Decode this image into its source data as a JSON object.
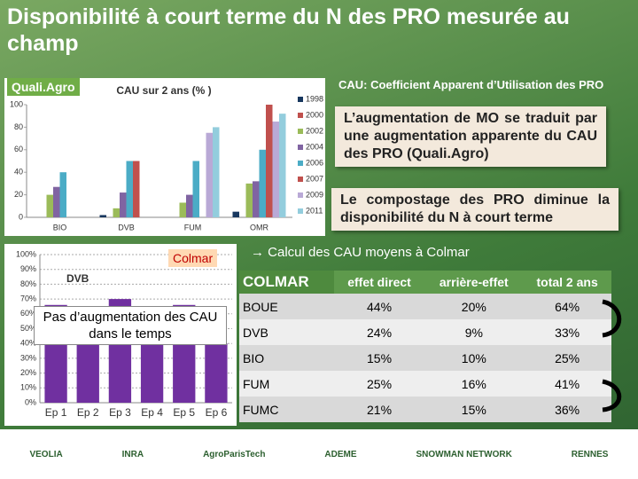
{
  "slide": {
    "title": "Disponibilité à court terme du N des PRO mesurée au champ",
    "qualiagro_tag": "Quali.Agro",
    "cau_definition": "CAU: Coefficient Apparent d’Utilisation des PRO",
    "box1": "L’augmentation de MO se traduit par une augmentation apparente du CAU des PRO (Quali.Agro)",
    "box2": "Le compostage des PRO diminue la disponibilité du N à court terme",
    "colmar_tag": "Colmar",
    "colmar_note": "→ Calcul des CAU moyens à Colmar",
    "chart2_note": "Pas d’augmentation des CAU dans le temps"
  },
  "chart_data": [
    {
      "type": "bar",
      "title": "CAU sur 2 ans (% )",
      "categories": [
        "BIO",
        "DVB",
        "FUM",
        "OMR"
      ],
      "series": [
        {
          "name": "1998",
          "color": "#17375e",
          "values": [
            0,
            2,
            0,
            5
          ]
        },
        {
          "name": "2000",
          "color": "#c0504d",
          "values": [
            0,
            0,
            0,
            0
          ]
        },
        {
          "name": "2002",
          "color": "#9bbb59",
          "values": [
            20,
            8,
            13,
            30
          ]
        },
        {
          "name": "2004",
          "color": "#8064a2",
          "values": [
            27,
            22,
            20,
            32
          ]
        },
        {
          "name": "2006",
          "color": "#4bacc6",
          "values": [
            40,
            50,
            50,
            60
          ]
        },
        {
          "name": "2007",
          "color": "#c0504d",
          "values": [
            0,
            50,
            0,
            100
          ]
        },
        {
          "name": "2009",
          "color": "#b9a9d6",
          "values": [
            0,
            0,
            75,
            85
          ]
        },
        {
          "name": "2011",
          "color": "#93cddd",
          "values": [
            0,
            0,
            80,
            92
          ]
        }
      ],
      "ylim": [
        0,
        100
      ],
      "yticks": [
        0,
        20,
        40,
        60,
        80,
        100
      ],
      "grid": false
    },
    {
      "type": "bar",
      "title": "DVB",
      "categories": [
        "Ep 1",
        "Ep 2",
        "Ep 3",
        "Ep 4",
        "Ep 5",
        "Ep 6"
      ],
      "values": [
        66,
        61,
        70,
        62,
        66,
        40
      ],
      "color": "#7030a0",
      "ylim": [
        0,
        100
      ],
      "yticks": [
        {
          "value": 0,
          "label": "0%"
        },
        {
          "value": 10,
          "label": "10%"
        },
        {
          "value": 20,
          "label": "20%"
        },
        {
          "value": 30,
          "label": "30%"
        },
        {
          "value": 40,
          "label": "40%"
        },
        {
          "value": 50,
          "label": "50%"
        },
        {
          "value": 60,
          "label": "60%"
        },
        {
          "value": 70,
          "label": "70%"
        },
        {
          "value": 80,
          "label": "80%"
        },
        {
          "value": 90,
          "label": "90%"
        },
        {
          "value": 100,
          "label": "100%"
        }
      ],
      "grid": true
    }
  ],
  "table": {
    "header": [
      "COLMAR",
      "effet direct",
      "arrière-effet",
      "total 2 ans"
    ],
    "rows": [
      [
        "BOUE",
        "44%",
        "20%",
        "64%"
      ],
      [
        "DVB",
        "24%",
        "9%",
        "33%"
      ],
      [
        "BIO",
        "15%",
        "10%",
        "25%"
      ],
      [
        "FUM",
        "25%",
        "16%",
        "41%"
      ],
      [
        "FUMC",
        "21%",
        "15%",
        "36%"
      ]
    ]
  },
  "logos": [
    "VEOLIA",
    "INRA",
    "AgroParisTech",
    "ADEME",
    "SNOWMAN NETWORK",
    "RENNES"
  ]
}
